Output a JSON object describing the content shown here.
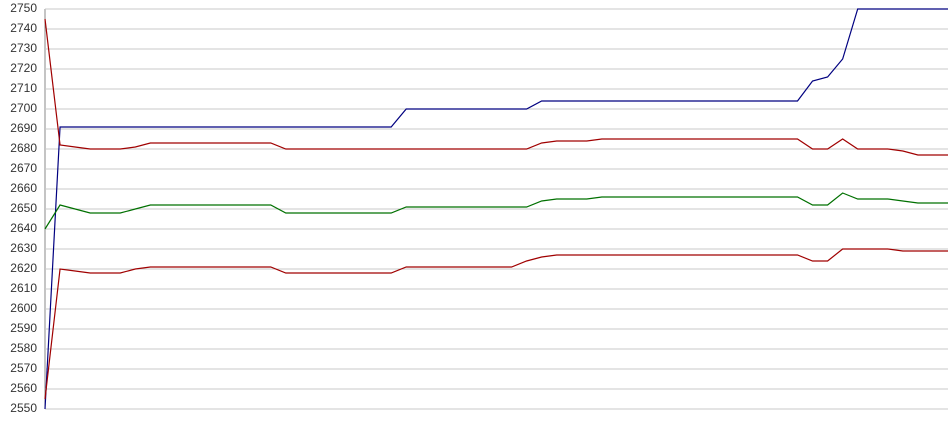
{
  "chart_data": {
    "type": "line",
    "categories": [
      null,
      null,
      null,
      null,
      null,
      null,
      null,
      null,
      null,
      null,
      null,
      null,
      null,
      null,
      null,
      null,
      null,
      null,
      null,
      null,
      null,
      null,
      null,
      null,
      null,
      null,
      null,
      null,
      null,
      null,
      null,
      null,
      null,
      null,
      null,
      null,
      null,
      null,
      null,
      null,
      null,
      null,
      null,
      null,
      null,
      null,
      null,
      null,
      null,
      null,
      null,
      null,
      null,
      null,
      null,
      null,
      null,
      null,
      null,
      null,
      null
    ],
    "series": [
      {
        "color": "#000080",
        "values": [
          2550,
          2691,
          2691,
          2691,
          2691,
          2691,
          2691,
          2691,
          2691,
          2691,
          2691,
          2691,
          2691,
          2691,
          2691,
          2691,
          2691,
          2691,
          2691,
          2691,
          2691,
          2691,
          2691,
          2691,
          2700,
          2700,
          2700,
          2700,
          2700,
          2700,
          2700,
          2700,
          2700,
          2704,
          2704,
          2704,
          2704,
          2704,
          2704,
          2704,
          2704,
          2704,
          2704,
          2704,
          2704,
          2704,
          2704,
          2704,
          2704,
          2704,
          2704,
          2714,
          2716,
          2725,
          2750,
          2750,
          2750,
          2750,
          2750,
          2750,
          2750
        ]
      },
      {
        "color": "#a00000",
        "values": [
          2745,
          2682,
          2681,
          2680,
          2680,
          2680,
          2681,
          2683,
          2683,
          2683,
          2683,
          2683,
          2683,
          2683,
          2683,
          2683,
          2680,
          2680,
          2680,
          2680,
          2680,
          2680,
          2680,
          2680,
          2680,
          2680,
          2680,
          2680,
          2680,
          2680,
          2680,
          2680,
          2680,
          2683,
          2684,
          2684,
          2684,
          2685,
          2685,
          2685,
          2685,
          2685,
          2685,
          2685,
          2685,
          2685,
          2685,
          2685,
          2685,
          2685,
          2685,
          2680,
          2680,
          2685,
          2680,
          2680,
          2680,
          2679,
          2677,
          2677,
          2677
        ]
      },
      {
        "color": "#007000",
        "values": [
          2640,
          2652,
          2650,
          2648,
          2648,
          2648,
          2650,
          2652,
          2652,
          2652,
          2652,
          2652,
          2652,
          2652,
          2652,
          2652,
          2648,
          2648,
          2648,
          2648,
          2648,
          2648,
          2648,
          2648,
          2651,
          2651,
          2651,
          2651,
          2651,
          2651,
          2651,
          2651,
          2651,
          2654,
          2655,
          2655,
          2655,
          2656,
          2656,
          2656,
          2656,
          2656,
          2656,
          2656,
          2656,
          2656,
          2656,
          2656,
          2656,
          2656,
          2656,
          2652,
          2652,
          2658,
          2655,
          2655,
          2655,
          2654,
          2653,
          2653,
          2653
        ]
      },
      {
        "color": "#a00000",
        "values": [
          2555,
          2620,
          2619,
          2618,
          2618,
          2618,
          2620,
          2621,
          2621,
          2621,
          2621,
          2621,
          2621,
          2621,
          2621,
          2621,
          2618,
          2618,
          2618,
          2618,
          2618,
          2618,
          2618,
          2618,
          2621,
          2621,
          2621,
          2621,
          2621,
          2621,
          2621,
          2621,
          2624,
          2626,
          2627,
          2627,
          2627,
          2627,
          2627,
          2627,
          2627,
          2627,
          2627,
          2627,
          2627,
          2627,
          2627,
          2627,
          2627,
          2627,
          2627,
          2624,
          2624,
          2630,
          2630,
          2630,
          2630,
          2629,
          2629,
          2629,
          2629
        ]
      }
    ],
    "ylim": [
      2550,
      2750
    ],
    "yticks": [
      2550,
      2560,
      2570,
      2580,
      2590,
      2600,
      2610,
      2620,
      2630,
      2640,
      2650,
      2660,
      2670,
      2680,
      2690,
      2700,
      2710,
      2720,
      2730,
      2740,
      2750
    ],
    "grid": true
  }
}
